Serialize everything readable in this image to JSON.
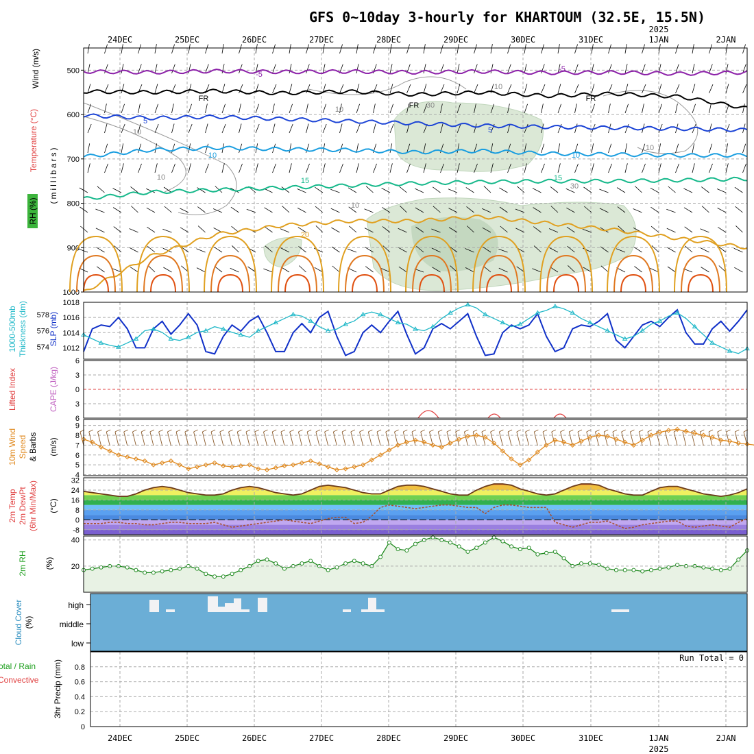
{
  "title": "GFS 0~10day 3-hourly for KHARTOUM (32.5E, 15.5N)",
  "year_label": "2025",
  "dates": [
    "24DEC",
    "25DEC",
    "26DEC",
    "27DEC",
    "28DEC",
    "29DEC",
    "30DEC",
    "31DEC",
    "1JAN",
    "2JAN"
  ],
  "chart_data": [
    {
      "type": "line",
      "panel": "upper-air",
      "ylabel": [
        "Wind (m/s)",
        "Temperature (°C)",
        "RH (%)",
        "(millibars)"
      ],
      "yticks": [
        500,
        600,
        700,
        800,
        900,
        1000
      ],
      "ylim": [
        450,
        1000
      ],
      "isotherm_labels": [
        "-5",
        "FR",
        "5",
        "10",
        "15",
        "20"
      ],
      "rh_labels": [
        "10",
        "30"
      ],
      "isotherms": [
        {
          "name": "-5",
          "pressure": [
            503,
            505,
            502,
            504,
            503,
            505,
            503,
            506,
            505,
            508,
            505
          ],
          "color": "#8b1fa8"
        },
        {
          "name": "FR",
          "pressure": [
            548,
            550,
            547,
            552,
            548,
            555,
            550,
            558,
            553,
            560,
            586
          ],
          "color": "#000000"
        },
        {
          "name": "5",
          "pressure": [
            602,
            608,
            605,
            610,
            615,
            620,
            625,
            628,
            630,
            632,
            635
          ],
          "color": "#1c44d6"
        },
        {
          "name": "10",
          "pressure": [
            695,
            680,
            675,
            678,
            680,
            685,
            682,
            688,
            690,
            692,
            692
          ],
          "color": "#1a9ee0"
        },
        {
          "name": "15",
          "pressure": [
            790,
            775,
            770,
            765,
            760,
            755,
            752,
            750,
            750,
            748,
            745
          ],
          "color": "#15b88a"
        },
        {
          "name": "20",
          "pressure": [
            1000,
            920,
            870,
            850,
            840,
            840,
            830,
            845,
            860,
            880,
            900
          ],
          "color": "#e0a020"
        }
      ]
    },
    {
      "type": "line",
      "panel": "pressure",
      "ylabel": [
        "1000-500mb",
        "Thickness (dm)",
        "SLP (mb)"
      ],
      "yticks_left": [
        574,
        576,
        578
      ],
      "yticks_right": [
        1012,
        1014,
        1016,
        1018
      ],
      "series": [
        {
          "name": "SLP",
          "color": "#1030c8",
          "axis": "right",
          "values": [
            1011.5,
            1014.5,
            1015,
            1014.8,
            1016,
            1014.5,
            1012,
            1012,
            1014.5,
            1015.5,
            1013.8,
            1015,
            1016.5,
            1015,
            1011.5,
            1011.2,
            1013.5,
            1015,
            1014.2,
            1015.5,
            1016.2,
            1014,
            1011.5,
            1011.5,
            1014,
            1015.2,
            1014,
            1016,
            1016.8,
            1013.5,
            1011,
            1011.5,
            1014,
            1015,
            1014,
            1015.5,
            1016.8,
            1013.8,
            1011.2,
            1012,
            1014.5,
            1015.2,
            1014.5,
            1015.5,
            1016.5,
            1013.5,
            1011,
            1011.2,
            1014,
            1015,
            1014.5,
            1015,
            1016.5,
            1013.5,
            1011.5,
            1012,
            1014.5,
            1015,
            1014.8,
            1015.5,
            1016.5,
            1013,
            1012,
            1013.5,
            1015,
            1015.5,
            1014.8,
            1016,
            1017,
            1014,
            1012.5,
            1012.5,
            1014.5,
            1015.5,
            1014.2,
            1015.5,
            1017
          ]
        },
        {
          "name": "Thickness",
          "color": "#20b8c8",
          "axis": "left",
          "values": [
            575.5,
            575,
            574.5,
            574.2,
            574,
            574.5,
            575,
            576,
            576.2,
            575.8,
            575,
            574.8,
            575.2,
            575.8,
            576,
            576.5,
            576.2,
            575.8,
            575.5,
            575.2,
            576,
            576.5,
            577,
            577.5,
            578,
            577.8,
            577.2,
            576.5,
            576,
            576.2,
            576.8,
            577.2,
            578,
            578.3,
            578,
            577.5,
            577,
            576.8,
            576.2,
            576,
            576.5,
            577.5,
            578.2,
            578.8,
            579.2,
            578.8,
            578,
            577.5,
            577,
            576.5,
            576.8,
            577.5,
            578.2,
            578.5,
            579,
            578.7,
            578.2,
            577.5,
            577,
            576.5,
            576,
            575.5,
            575,
            575.3,
            576,
            576.8,
            577.2,
            577.8,
            578.2,
            577.5,
            576.5,
            575.5,
            574.5,
            574,
            573.5,
            573.2,
            573.8
          ]
        }
      ]
    },
    {
      "type": "line",
      "panel": "stability",
      "ylabel": [
        "Lifted Index",
        "CAPE (J/kg)"
      ],
      "yticks": [
        "6",
        "3",
        "0",
        "3",
        "6"
      ],
      "series": [
        {
          "name": "Lifted Index",
          "color": "#e04040",
          "reference": 0
        }
      ]
    },
    {
      "type": "line",
      "panel": "wind10m",
      "ylabel": [
        "10m Wind",
        "Speed",
        "& Barbs",
        "(m/s)"
      ],
      "yticks": [
        4,
        5,
        6,
        7,
        8,
        9
      ],
      "ylim": [
        4,
        9
      ],
      "series": [
        {
          "name": "10m Wind Speed",
          "color": "#e08a20",
          "values": [
            7.6,
            7.3,
            6.8,
            6.4,
            6.0,
            5.8,
            5.6,
            5.4,
            5.0,
            5.2,
            5.4,
            5.0,
            4.6,
            4.8,
            5.0,
            5.2,
            4.9,
            4.8,
            4.9,
            5.0,
            4.6,
            4.5,
            4.7,
            4.9,
            5.0,
            5.2,
            5.4,
            5.1,
            4.8,
            4.5,
            4.6,
            4.8,
            5.0,
            5.5,
            6.0,
            6.5,
            7.0,
            7.3,
            7.5,
            7.3,
            7.0,
            6.8,
            7.2,
            7.6,
            7.9,
            8.0,
            7.8,
            7.2,
            6.4,
            5.6,
            5.0,
            5.5,
            6.3,
            7.0,
            7.5,
            7.3,
            7.0,
            7.4,
            7.8,
            8.0,
            7.9,
            7.6,
            7.3,
            7.0,
            7.5,
            8.0,
            8.3,
            8.5,
            8.6,
            8.4,
            8.2,
            8.0,
            7.8,
            7.5,
            7.4,
            7.2,
            7.1,
            7.0
          ]
        }
      ]
    },
    {
      "type": "area",
      "panel": "temp2m",
      "ylabel": [
        "2m Temp",
        "2m DewPt",
        "(6hr Min/Max)",
        "(°C)"
      ],
      "yticks": [
        -8,
        0,
        8,
        16,
        24,
        32
      ],
      "ylim": [
        -12,
        34
      ],
      "series": [
        {
          "name": "2m Temp",
          "color": "#6b3a1a",
          "values": [
            23,
            22,
            21,
            20,
            19,
            19,
            21,
            24,
            26,
            27,
            26,
            24,
            22,
            21,
            20,
            20,
            21,
            24,
            26,
            27,
            26,
            24,
            22,
            21,
            20,
            21,
            24,
            27,
            28,
            27,
            26,
            24,
            22,
            21,
            21,
            24,
            27,
            28,
            28,
            27,
            25,
            23,
            21,
            20,
            20,
            24,
            27,
            29,
            29,
            28,
            25,
            23,
            21,
            20,
            21,
            24,
            27,
            29,
            29,
            28,
            25,
            23,
            21,
            20,
            20,
            23,
            26,
            27,
            27,
            25,
            23,
            21,
            20,
            19,
            20,
            22,
            25
          ]
        },
        {
          "name": "2m DewPt",
          "color": "#a85030",
          "values": [
            -3,
            -3,
            -3,
            -2,
            -2,
            -3,
            -3,
            -4,
            -4,
            -3,
            -2,
            -2,
            -3,
            -3,
            -3,
            -2,
            -4,
            -6,
            -5,
            -4,
            -3,
            -2,
            -1,
            0,
            -1,
            -2,
            -3,
            -1,
            1,
            2,
            2,
            -3,
            -2,
            3,
            10,
            12,
            11,
            10,
            9,
            10,
            11,
            12,
            12,
            11,
            10,
            10,
            5,
            10,
            12,
            12,
            11,
            10,
            10,
            10,
            -2,
            -4,
            -6,
            -4,
            -2,
            -2,
            -1,
            -4,
            -7,
            -6,
            -4,
            -3,
            -2,
            -1,
            -1,
            -5,
            -6,
            -5,
            -4,
            -5,
            -6,
            -2,
            1
          ]
        }
      ]
    },
    {
      "type": "area",
      "panel": "rh2m",
      "ylabel": [
        "2m RH",
        "(%)"
      ],
      "yticks": [
        20,
        40
      ],
      "ylim": [
        0,
        42
      ],
      "series": [
        {
          "name": "2m RH",
          "color": "#208a20",
          "values": [
            17,
            18,
            19,
            20,
            20,
            19,
            17,
            15,
            15,
            16,
            17,
            18,
            20,
            18,
            14,
            12,
            12,
            14,
            17,
            20,
            24,
            25,
            22,
            18,
            20,
            22,
            24,
            20,
            17,
            19,
            22,
            24,
            22,
            20,
            27,
            38,
            33,
            32,
            37,
            40,
            42,
            40,
            38,
            35,
            31,
            34,
            38,
            42,
            39,
            35,
            33,
            34,
            29,
            30,
            31,
            26,
            20,
            22,
            22,
            21,
            18,
            17,
            17,
            17,
            16,
            17,
            18,
            19,
            21,
            20,
            20,
            19,
            18,
            17,
            18,
            25,
            32
          ]
        }
      ]
    },
    {
      "type": "bar",
      "panel": "cloud",
      "ylabel": [
        "Cloud Cover",
        "(%)"
      ],
      "levels": [
        "high",
        "middle",
        "low"
      ]
    },
    {
      "type": "line",
      "panel": "precip",
      "ylabel": [
        "Total / Rain",
        "Convective",
        "3hr Precip (mm)"
      ],
      "yticks": [
        0,
        0.2,
        0.4,
        0.6,
        0.8
      ],
      "ylim": [
        0,
        1
      ],
      "run_total": "Run Total = 0"
    }
  ]
}
